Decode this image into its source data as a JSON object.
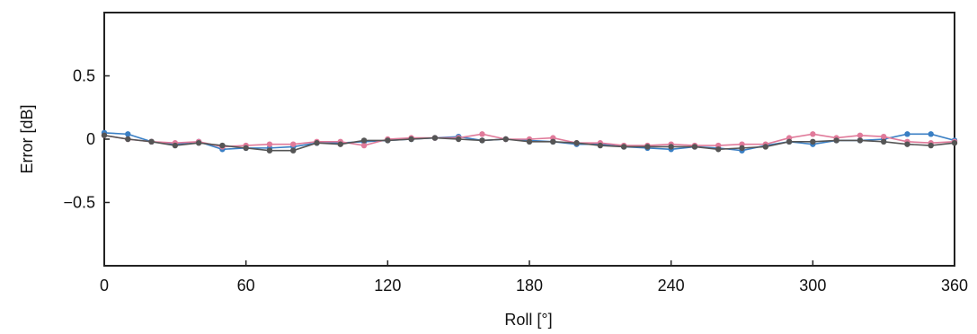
{
  "chart_data": {
    "type": "line",
    "title": "",
    "xlabel": "Roll [°]",
    "ylabel": "Error [dB]",
    "xlim": [
      0,
      360
    ],
    "ylim": [
      -1,
      1
    ],
    "xticks": [
      "0",
      "60",
      "120",
      "180",
      "240",
      "300",
      "360"
    ],
    "yticks": [
      "0.5",
      "0",
      "−0.5"
    ],
    "grid": false,
    "x": [
      0,
      10,
      20,
      30,
      40,
      50,
      60,
      70,
      80,
      90,
      100,
      110,
      120,
      130,
      140,
      150,
      160,
      170,
      180,
      190,
      200,
      210,
      220,
      230,
      240,
      250,
      260,
      270,
      280,
      290,
      300,
      310,
      320,
      330,
      340,
      350,
      360
    ],
    "series": [
      {
        "color": "#3a7fc4",
        "values": [
          0.05,
          0.04,
          -0.02,
          -0.04,
          -0.02,
          -0.08,
          -0.07,
          -0.07,
          -0.06,
          -0.03,
          -0.03,
          -0.02,
          -0.01,
          0.0,
          0.01,
          0.02,
          -0.01,
          0.0,
          -0.01,
          -0.02,
          -0.04,
          -0.04,
          -0.06,
          -0.07,
          -0.08,
          -0.06,
          -0.07,
          -0.09,
          -0.05,
          -0.02,
          -0.04,
          -0.01,
          -0.01,
          0.0,
          0.04,
          0.04,
          -0.01
        ]
      },
      {
        "color": "#e07a9a",
        "values": [
          0.03,
          0.0,
          -0.02,
          -0.03,
          -0.02,
          -0.06,
          -0.05,
          -0.04,
          -0.04,
          -0.02,
          -0.02,
          -0.05,
          0.0,
          0.01,
          0.01,
          0.01,
          0.04,
          0.0,
          0.0,
          0.01,
          -0.03,
          -0.03,
          -0.05,
          -0.05,
          -0.04,
          -0.05,
          -0.05,
          -0.04,
          -0.04,
          0.01,
          0.04,
          0.01,
          0.03,
          0.02,
          -0.02,
          -0.03,
          -0.02
        ]
      },
      {
        "color": "#555555",
        "values": [
          0.03,
          0.0,
          -0.02,
          -0.05,
          -0.03,
          -0.05,
          -0.07,
          -0.09,
          -0.09,
          -0.03,
          -0.04,
          -0.01,
          -0.01,
          0.0,
          0.01,
          0.0,
          -0.01,
          0.0,
          -0.02,
          -0.02,
          -0.03,
          -0.05,
          -0.06,
          -0.06,
          -0.06,
          -0.06,
          -0.08,
          -0.07,
          -0.06,
          -0.02,
          -0.02,
          -0.01,
          -0.01,
          -0.02,
          -0.04,
          -0.05,
          -0.03
        ]
      }
    ]
  }
}
